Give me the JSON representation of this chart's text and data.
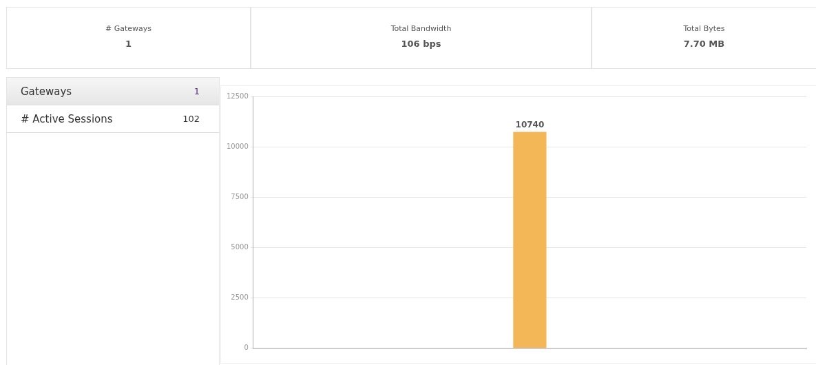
{
  "chart_data": [
    {
      "type": "other",
      "annotations": [
        "# Gateways",
        "1",
        "Total Bandwidth",
        "106 bps",
        "Total Bytes",
        "7.70 MB",
        "Gateways",
        "1",
        "# Active Sessions",
        "102"
      ]
    },
    {
      "type": "bar",
      "categories": [
        null
      ],
      "values": [
        10740
      ],
      "color": "#f3b757",
      "ylim": [
        0,
        12500
      ],
      "yticks": [
        0,
        2500,
        5000,
        7500,
        10000,
        12500
      ],
      "grid": "y",
      "data_labels": true
    }
  ]
}
